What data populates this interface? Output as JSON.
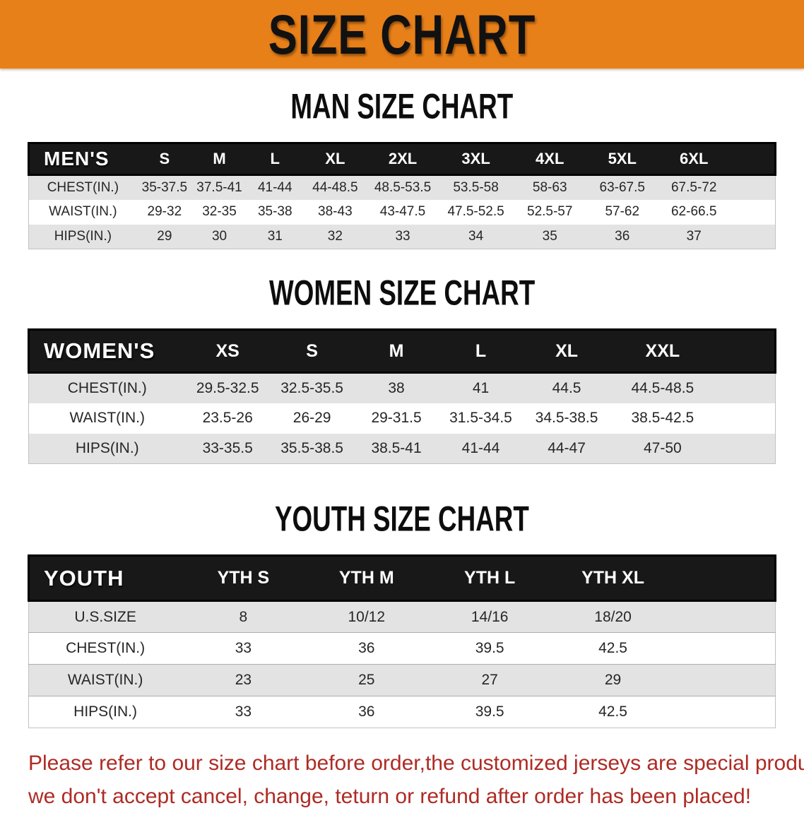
{
  "banner": {
    "title": "SIZE CHART"
  },
  "theme": {
    "banner_bg": "#e8801a",
    "header_bar_bg": "#181818",
    "stripe_gray": "#e3e3e3",
    "disclaimer_red": "#ae2b24"
  },
  "sections": [
    {
      "heading": "MAN SIZE CHART",
      "table": {
        "header_label": "MEN'S",
        "columns": [
          "S",
          "M",
          "L",
          "XL",
          "2XL",
          "3XL",
          "4XL",
          "5XL",
          "6XL"
        ],
        "rows": [
          {
            "label": "CHEST(IN.)",
            "values": [
              "35-37.5",
              "37.5-41",
              "41-44",
              "44-48.5",
              "48.5-53.5",
              "53.5-58",
              "58-63",
              "63-67.5",
              "67.5-72"
            ]
          },
          {
            "label": "WAIST(IN.)",
            "values": [
              "29-32",
              "32-35",
              "35-38",
              "38-43",
              "43-47.5",
              "47.5-52.5",
              "52.5-57",
              "57-62",
              "62-66.5"
            ]
          },
          {
            "label": "HIPS(IN.)",
            "values": [
              "29",
              "30",
              "31",
              "32",
              "33",
              "34",
              "35",
              "36",
              "37"
            ]
          }
        ]
      }
    },
    {
      "heading": "WOMEN SIZE CHART",
      "table": {
        "header_label": "WOMEN'S",
        "columns": [
          "XS",
          "S",
          "M",
          "L",
          "XL",
          "XXL"
        ],
        "rows": [
          {
            "label": "CHEST(IN.)",
            "values": [
              "29.5-32.5",
              "32.5-35.5",
              "38",
              "41",
              "44.5",
              "44.5-48.5"
            ]
          },
          {
            "label": "WAIST(IN.)",
            "values": [
              "23.5-26",
              "26-29",
              "29-31.5",
              "31.5-34.5",
              "34.5-38.5",
              "38.5-42.5"
            ]
          },
          {
            "label": "HIPS(IN.)",
            "values": [
              "33-35.5",
              "35.5-38.5",
              "38.5-41",
              "41-44",
              "44-47",
              "47-50"
            ]
          }
        ]
      }
    },
    {
      "heading": "YOUTH SIZE CHART",
      "table": {
        "header_label": "YOUTH",
        "columns": [
          "YTH S",
          "YTH M",
          "YTH L",
          "YTH XL"
        ],
        "rows": [
          {
            "label": "U.S.SIZE",
            "values": [
              "8",
              "10/12",
              "14/16",
              "18/20"
            ]
          },
          {
            "label": "CHEST(IN.)",
            "values": [
              "33",
              "36",
              "39.5",
              "42.5"
            ]
          },
          {
            "label": "WAIST(IN.)",
            "values": [
              "23",
              "25",
              "27",
              "29"
            ]
          },
          {
            "label": "HIPS(IN.)",
            "values": [
              "33",
              "36",
              "39.5",
              "42.5"
            ]
          }
        ]
      }
    }
  ],
  "disclaimer": {
    "line1": "Please refer to our size chart before order,the customized jerseys are special products,",
    "line2": "we don't accept cancel, change, teturn or refund after order has been placed!"
  }
}
